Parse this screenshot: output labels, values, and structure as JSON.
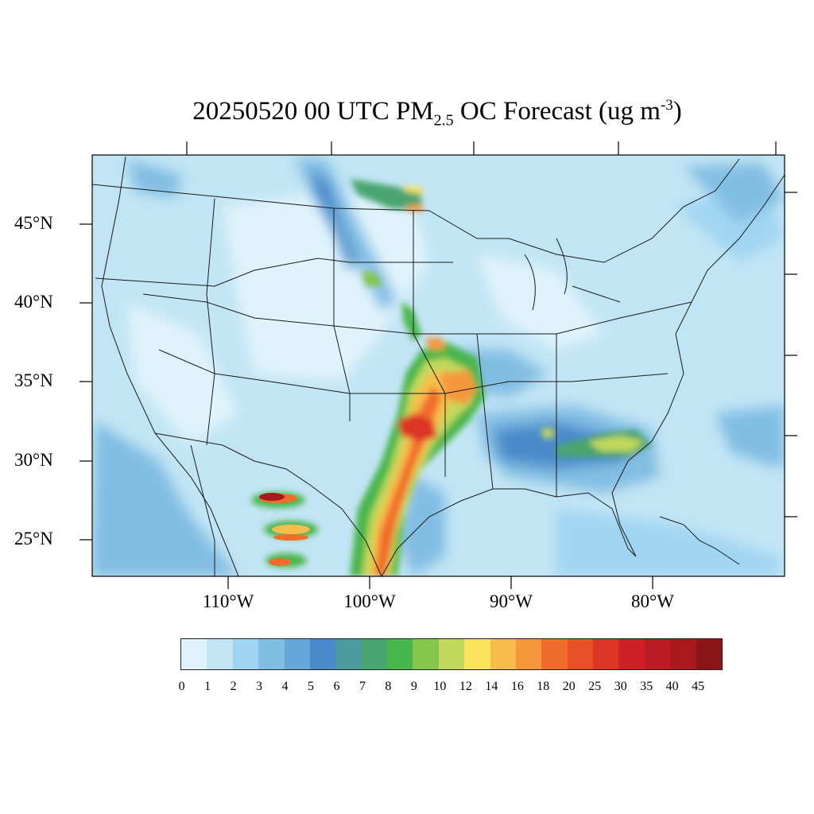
{
  "title": {
    "main": "20250520 00 UTC PM",
    "sub": "2.5",
    "mid": " OC Forecast (ug m",
    "sup": "-3",
    "end": ")"
  },
  "lat_labels": [
    "45°N",
    "40°N",
    "35°N",
    "30°N",
    "25°N"
  ],
  "lon_labels": [
    "110°W",
    "100°W",
    "90°W",
    "80°W"
  ],
  "colorbar": {
    "ticks": [
      "0",
      "1",
      "2",
      "3",
      "4",
      "5",
      "6",
      "7",
      "8",
      "9",
      "10",
      "12",
      "14",
      "16",
      "18",
      "20",
      "25",
      "30",
      "35",
      "40",
      "45"
    ],
    "colors": [
      "#e0f3fb",
      "#c2e5f5",
      "#a0d5f2",
      "#82bde3",
      "#66a6d8",
      "#4a8acb",
      "#4a9a9e",
      "#48a56f",
      "#48b64c",
      "#85c64c",
      "#c1d85c",
      "#f8e35b",
      "#f7bd4a",
      "#f6973d",
      "#f16d2c",
      "#e85028",
      "#dc3425",
      "#d02027",
      "#bb1b22",
      "#a7191d",
      "#8b1619"
    ]
  },
  "map": {
    "background": "#c2e5f5",
    "min_value": 0,
    "max_value": 45
  }
}
